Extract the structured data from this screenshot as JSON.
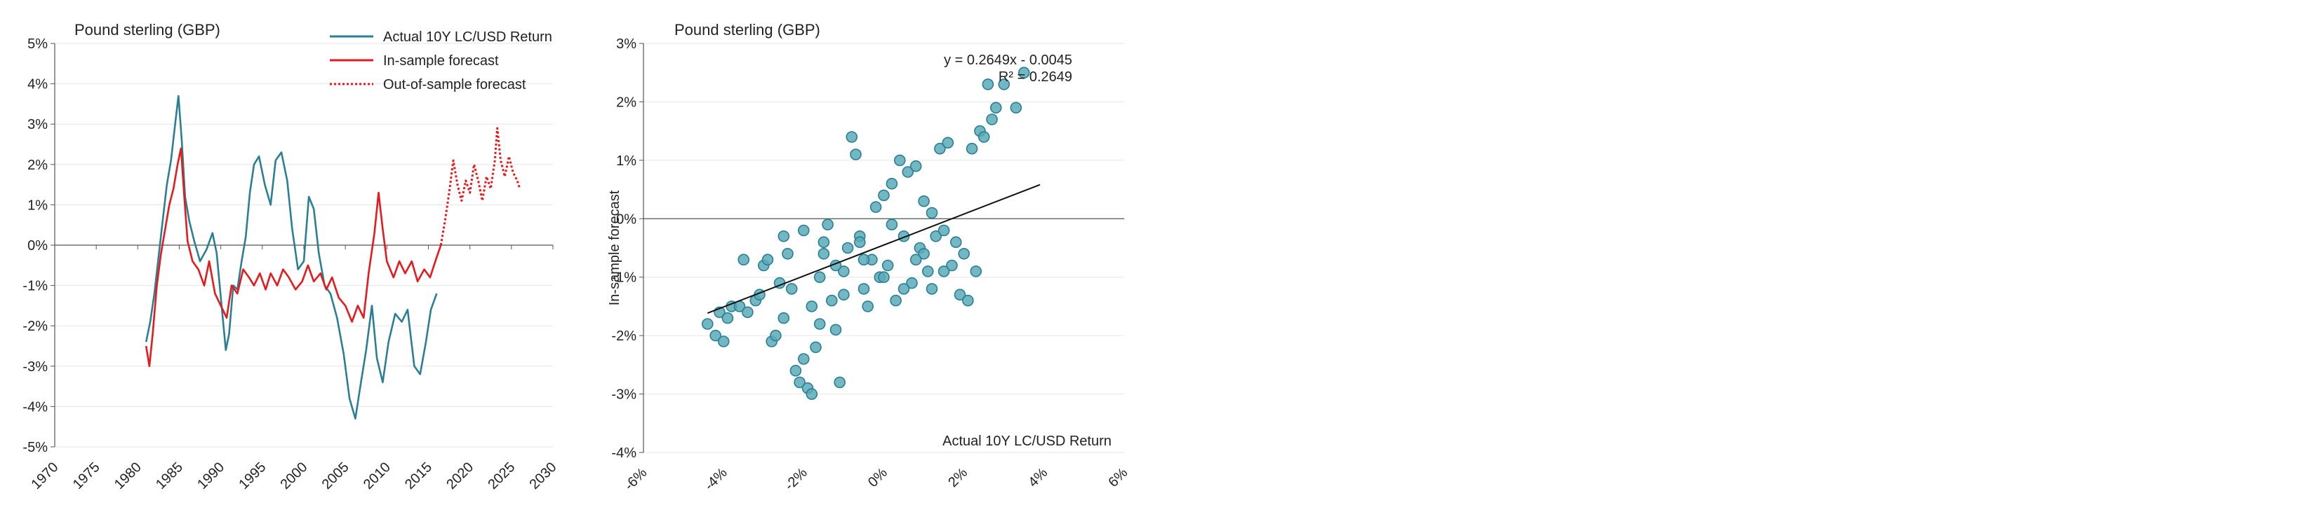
{
  "chart_data": [
    {
      "type": "line",
      "title": "Pound sterling (GBP)",
      "xlabel": "",
      "ylabel": "",
      "xlim": [
        1970,
        2030
      ],
      "ylim": [
        -0.05,
        0.05
      ],
      "x_ticks": [
        "1970",
        "1975",
        "1980",
        "1985",
        "1990",
        "1995",
        "2000",
        "2005",
        "2010",
        "2015",
        "2020",
        "2025",
        "2030"
      ],
      "y_ticks": [
        "5%",
        "4%",
        "3%",
        "2%",
        "1%",
        "0%",
        "-1%",
        "-2%",
        "-3%",
        "-4%",
        "-5%"
      ],
      "legend_position": "top-right",
      "grid": true,
      "series": [
        {
          "name": "Actual 10Y LC/USD Return",
          "color": "#2a7f94",
          "style": "solid",
          "points": [
            [
              1981.0,
              -0.024
            ],
            [
              1981.5,
              -0.019
            ],
            [
              1982.0,
              -0.012
            ],
            [
              1982.5,
              -0.003
            ],
            [
              1983.0,
              0.006
            ],
            [
              1983.5,
              0.015
            ],
            [
              1984.0,
              0.021
            ],
            [
              1984.5,
              0.03
            ],
            [
              1984.9,
              0.037
            ],
            [
              1985.3,
              0.026
            ],
            [
              1985.7,
              0.012
            ],
            [
              1986.2,
              0.006
            ],
            [
              1986.8,
              0.001
            ],
            [
              1987.5,
              -0.004
            ],
            [
              1988.3,
              -0.001
            ],
            [
              1989.0,
              0.003
            ],
            [
              1989.5,
              -0.002
            ],
            [
              1990.0,
              -0.013
            ],
            [
              1990.6,
              -0.026
            ],
            [
              1991.0,
              -0.022
            ],
            [
              1991.5,
              -0.01
            ],
            [
              1992.0,
              -0.011
            ],
            [
              1992.5,
              -0.004
            ],
            [
              1993.0,
              0.002
            ],
            [
              1993.5,
              0.013
            ],
            [
              1994.0,
              0.02
            ],
            [
              1994.6,
              0.022
            ],
            [
              1995.3,
              0.015
            ],
            [
              1996.0,
              0.01
            ],
            [
              1996.6,
              0.021
            ],
            [
              1997.3,
              0.023
            ],
            [
              1998.0,
              0.016
            ],
            [
              1998.6,
              0.004
            ],
            [
              1999.3,
              -0.006
            ],
            [
              2000.0,
              -0.004
            ],
            [
              2000.6,
              0.012
            ],
            [
              2001.2,
              0.009
            ],
            [
              2001.8,
              -0.002
            ],
            [
              2002.5,
              -0.01
            ],
            [
              2003.2,
              -0.012
            ],
            [
              2004.0,
              -0.018
            ],
            [
              2004.8,
              -0.027
            ],
            [
              2005.5,
              -0.038
            ],
            [
              2006.2,
              -0.043
            ],
            [
              2006.8,
              -0.035
            ],
            [
              2007.5,
              -0.026
            ],
            [
              2008.2,
              -0.015
            ],
            [
              2008.8,
              -0.028
            ],
            [
              2009.5,
              -0.034
            ],
            [
              2010.2,
              -0.024
            ],
            [
              2011.0,
              -0.017
            ],
            [
              2011.8,
              -0.019
            ],
            [
              2012.5,
              -0.016
            ],
            [
              2013.3,
              -0.03
            ],
            [
              2014.0,
              -0.032
            ],
            [
              2014.7,
              -0.024
            ],
            [
              2015.3,
              -0.016
            ],
            [
              2016.0,
              -0.012
            ]
          ]
        },
        {
          "name": "In-sample forecast",
          "color": "#e41a1c",
          "style": "solid",
          "points": [
            [
              1981.0,
              -0.025
            ],
            [
              1981.4,
              -0.03
            ],
            [
              1981.8,
              -0.022
            ],
            [
              1982.3,
              -0.01
            ],
            [
              1982.8,
              -0.002
            ],
            [
              1983.3,
              0.004
            ],
            [
              1983.8,
              0.01
            ],
            [
              1984.3,
              0.014
            ],
            [
              1984.8,
              0.02
            ],
            [
              1985.2,
              0.024
            ],
            [
              1985.6,
              0.012
            ],
            [
              1986.0,
              0.001
            ],
            [
              1986.6,
              -0.004
            ],
            [
              1987.3,
              -0.006
            ],
            [
              1988.0,
              -0.01
            ],
            [
              1988.6,
              -0.004
            ],
            [
              1989.3,
              -0.012
            ],
            [
              1990.0,
              -0.015
            ],
            [
              1990.7,
              -0.018
            ],
            [
              1991.3,
              -0.01
            ],
            [
              1992.0,
              -0.012
            ],
            [
              1992.7,
              -0.006
            ],
            [
              1993.4,
              -0.008
            ],
            [
              1994.0,
              -0.01
            ],
            [
              1994.7,
              -0.007
            ],
            [
              1995.4,
              -0.011
            ],
            [
              1996.0,
              -0.007
            ],
            [
              1996.8,
              -0.01
            ],
            [
              1997.5,
              -0.006
            ],
            [
              1998.2,
              -0.008
            ],
            [
              1999.0,
              -0.011
            ],
            [
              1999.8,
              -0.009
            ],
            [
              2000.5,
              -0.005
            ],
            [
              2001.2,
              -0.009
            ],
            [
              2002.0,
              -0.007
            ],
            [
              2002.7,
              -0.011
            ],
            [
              2003.4,
              -0.008
            ],
            [
              2004.2,
              -0.013
            ],
            [
              2005.0,
              -0.015
            ],
            [
              2005.8,
              -0.019
            ],
            [
              2006.5,
              -0.015
            ],
            [
              2007.2,
              -0.018
            ],
            [
              2007.8,
              -0.007
            ],
            [
              2008.5,
              0.003
            ],
            [
              2009.0,
              0.013
            ],
            [
              2009.5,
              0.004
            ],
            [
              2010.0,
              -0.004
            ],
            [
              2010.8,
              -0.008
            ],
            [
              2011.5,
              -0.004
            ],
            [
              2012.2,
              -0.007
            ],
            [
              2013.0,
              -0.004
            ],
            [
              2013.7,
              -0.009
            ],
            [
              2014.5,
              -0.006
            ],
            [
              2015.2,
              -0.008
            ],
            [
              2016.0,
              -0.003
            ],
            [
              2016.5,
              0.0
            ]
          ]
        },
        {
          "name": "Out-of-sample forecast",
          "color": "#e41a1c",
          "style": "dotted",
          "points": [
            [
              2016.5,
              0.0
            ],
            [
              2017.0,
              0.006
            ],
            [
              2017.5,
              0.013
            ],
            [
              2018.0,
              0.021
            ],
            [
              2018.5,
              0.015
            ],
            [
              2019.0,
              0.011
            ],
            [
              2019.5,
              0.016
            ],
            [
              2020.0,
              0.013
            ],
            [
              2020.5,
              0.02
            ],
            [
              2021.0,
              0.016
            ],
            [
              2021.5,
              0.011
            ],
            [
              2022.0,
              0.017
            ],
            [
              2022.5,
              0.014
            ],
            [
              2023.0,
              0.021
            ],
            [
              2023.3,
              0.029
            ],
            [
              2023.7,
              0.021
            ],
            [
              2024.2,
              0.017
            ],
            [
              2024.7,
              0.022
            ],
            [
              2025.2,
              0.018
            ],
            [
              2025.7,
              0.016
            ],
            [
              2026.0,
              0.014
            ]
          ]
        }
      ]
    },
    {
      "type": "scatter",
      "title": "Pound sterling (GBP)",
      "xlabel": "Actual 10Y LC/USD Return",
      "ylabel": "In-sample forecast",
      "xlim": [
        -0.06,
        0.06
      ],
      "ylim": [
        -0.04,
        0.03
      ],
      "x_ticks": [
        "-6%",
        "-4%",
        "-2%",
        "0%",
        "2%",
        "4%",
        "6%"
      ],
      "y_ticks": [
        "3%",
        "2%",
        "1%",
        "0%",
        "-1%",
        "-2%",
        "-3%",
        "-4%"
      ],
      "grid": true,
      "marker_color": "#5aaab8",
      "marker_edge": "#2a7f94",
      "trendline": {
        "equation": "y = 0.2649x - 0.0045",
        "r2": "R² = 0.2649",
        "slope": 0.2649,
        "intercept": -0.0045,
        "x_range": [
          -0.044,
          0.039
        ]
      },
      "points": [
        [
          -0.044,
          -0.018
        ],
        [
          -0.042,
          -0.02
        ],
        [
          -0.041,
          -0.016
        ],
        [
          -0.04,
          -0.021
        ],
        [
          -0.039,
          -0.017
        ],
        [
          -0.038,
          -0.015
        ],
        [
          -0.036,
          -0.015
        ],
        [
          -0.035,
          -0.007
        ],
        [
          -0.034,
          -0.016
        ],
        [
          -0.032,
          -0.014
        ],
        [
          -0.031,
          -0.013
        ],
        [
          -0.03,
          -0.008
        ],
        [
          -0.029,
          -0.007
        ],
        [
          -0.028,
          -0.021
        ],
        [
          -0.027,
          -0.02
        ],
        [
          -0.026,
          -0.011
        ],
        [
          -0.025,
          -0.003
        ],
        [
          -0.024,
          -0.006
        ],
        [
          -0.023,
          -0.012
        ],
        [
          -0.022,
          -0.026
        ],
        [
          -0.021,
          -0.028
        ],
        [
          -0.02,
          -0.024
        ],
        [
          -0.019,
          -0.029
        ],
        [
          -0.018,
          -0.03
        ],
        [
          -0.017,
          -0.022
        ],
        [
          -0.016,
          -0.018
        ],
        [
          -0.016,
          -0.01
        ],
        [
          -0.015,
          -0.004
        ],
        [
          -0.014,
          -0.001
        ],
        [
          -0.013,
          -0.014
        ],
        [
          -0.012,
          -0.019
        ],
        [
          -0.011,
          -0.028
        ],
        [
          -0.01,
          -0.009
        ],
        [
          -0.009,
          -0.005
        ],
        [
          -0.008,
          0.014
        ],
        [
          -0.007,
          0.011
        ],
        [
          -0.006,
          -0.003
        ],
        [
          -0.005,
          -0.012
        ],
        [
          -0.004,
          -0.015
        ],
        [
          -0.003,
          -0.007
        ],
        [
          -0.002,
          0.002
        ],
        [
          -0.001,
          -0.01
        ],
        [
          0.0,
          0.004
        ],
        [
          0.001,
          -0.008
        ],
        [
          0.002,
          0.006
        ],
        [
          0.003,
          -0.014
        ],
        [
          0.004,
          0.01
        ],
        [
          0.005,
          -0.003
        ],
        [
          0.006,
          0.008
        ],
        [
          0.007,
          -0.011
        ],
        [
          0.008,
          0.009
        ],
        [
          0.009,
          -0.005
        ],
        [
          0.01,
          0.003
        ],
        [
          0.011,
          -0.009
        ],
        [
          0.012,
          0.001
        ],
        [
          0.013,
          -0.003
        ],
        [
          0.014,
          0.012
        ],
        [
          0.015,
          -0.002
        ],
        [
          0.016,
          0.013
        ],
        [
          0.017,
          -0.008
        ],
        [
          0.018,
          -0.004
        ],
        [
          0.019,
          -0.013
        ],
        [
          0.02,
          -0.006
        ],
        [
          0.021,
          -0.014
        ],
        [
          0.022,
          0.012
        ],
        [
          0.023,
          -0.009
        ],
        [
          0.024,
          0.015
        ],
        [
          0.025,
          0.014
        ],
        [
          0.026,
          0.023
        ],
        [
          0.027,
          0.017
        ],
        [
          0.028,
          0.019
        ],
        [
          0.03,
          0.023
        ],
        [
          0.033,
          0.019
        ],
        [
          0.035,
          0.025
        ],
        [
          -0.02,
          -0.002
        ],
        [
          -0.015,
          -0.006
        ],
        [
          -0.01,
          -0.013
        ],
        [
          -0.005,
          -0.007
        ],
        [
          0.0,
          -0.01
        ],
        [
          0.005,
          -0.012
        ],
        [
          0.01,
          -0.006
        ],
        [
          0.015,
          -0.009
        ],
        [
          -0.025,
          -0.017
        ],
        [
          -0.018,
          -0.015
        ],
        [
          -0.012,
          -0.008
        ],
        [
          -0.006,
          -0.004
        ],
        [
          0.002,
          -0.001
        ],
        [
          0.008,
          -0.007
        ],
        [
          0.012,
          -0.012
        ]
      ]
    }
  ]
}
